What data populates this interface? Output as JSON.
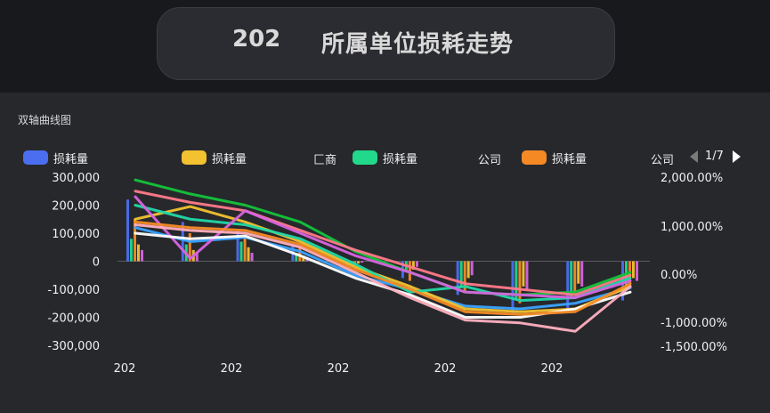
{
  "header": {
    "year": "202",
    "title": "所属单位损耗走势"
  },
  "panel": {
    "label": "双轴曲线图"
  },
  "legend": {
    "items": [
      {
        "label": "损耗量",
        "color": "#4b6ef0"
      },
      {
        "label": "损耗量",
        "color": "#f2c230"
      },
      {
        "label": "损耗量",
        "color": "#22d88a"
      },
      {
        "label": "损耗量",
        "color": "#f58a25"
      }
    ],
    "fragments": [
      "匚商",
      "公司",
      "公司"
    ],
    "page": "1/7"
  },
  "chart_data": {
    "type": "line",
    "y_left": {
      "ticks": [
        "300,000",
        "200,000",
        "100,000",
        "0",
        "-100,000",
        "-200,000",
        "-300,000"
      ],
      "range": [
        -300000,
        300000
      ]
    },
    "y_right": {
      "ticks": [
        "2,000.00%",
        "1,000.00%",
        "0.00%",
        "-1,000.00%",
        "-1,500.00%"
      ]
    },
    "x_labels": [
      "202",
      "202",
      "202",
      "202",
      "202"
    ],
    "series": [
      {
        "color": "#13c43a",
        "values": [
          290000,
          240000,
          200000,
          140000,
          35000,
          -40000,
          -110000,
          -120000,
          -110000,
          -40000
        ]
      },
      {
        "color": "#3aa3ff",
        "values": [
          120000,
          70000,
          85000,
          35000,
          -50000,
          -100000,
          -160000,
          -170000,
          -150000,
          -95000
        ]
      },
      {
        "color": "#ff7a8a",
        "values": [
          250000,
          210000,
          180000,
          110000,
          40000,
          -20000,
          -80000,
          -100000,
          -120000,
          -50000
        ]
      },
      {
        "color": "#f2c230",
        "values": [
          150000,
          195000,
          140000,
          70000,
          -20000,
          -90000,
          -170000,
          -180000,
          -170000,
          -90000
        ]
      },
      {
        "color": "#21d8a8",
        "values": [
          200000,
          150000,
          130000,
          80000,
          -10000,
          -110000,
          -90000,
          -140000,
          -130000,
          -60000
        ]
      },
      {
        "color": "#d864e0",
        "values": [
          230000,
          10000,
          180000,
          100000,
          20000,
          -40000,
          -110000,
          -120000,
          -130000,
          -70000
        ]
      },
      {
        "color": "#ffffff",
        "values": [
          100000,
          80000,
          90000,
          20000,
          -60000,
          -120000,
          -200000,
          -200000,
          -170000,
          -110000
        ]
      },
      {
        "color": "#ffb0c0",
        "values": [
          130000,
          110000,
          100000,
          50000,
          -40000,
          -130000,
          -210000,
          -220000,
          -250000,
          -90000
        ]
      },
      {
        "color": "#f58a25",
        "values": [
          140000,
          120000,
          110000,
          60000,
          -30000,
          -100000,
          -180000,
          -190000,
          -180000,
          -80000
        ]
      }
    ],
    "bars": [
      {
        "color": "#4b6ef0",
        "values": [
          220000,
          140000,
          110000,
          60000,
          -20000,
          -60000,
          -120000,
          -190000,
          -180000,
          -140000
        ]
      },
      {
        "color": "#22d88a",
        "values": [
          80000,
          60000,
          70000,
          30000,
          -10000,
          -40000,
          -90000,
          -140000,
          -130000,
          -100000
        ]
      },
      {
        "color": "#f58a25",
        "values": [
          150000,
          100000,
          90000,
          50000,
          -15000,
          -70000,
          -110000,
          -150000,
          -120000,
          -90000
        ]
      },
      {
        "color": "#f2c230",
        "values": [
          60000,
          40000,
          50000,
          20000,
          -8000,
          -30000,
          -60000,
          -90000,
          -80000,
          -60000
        ]
      },
      {
        "color": "#d864e0",
        "values": [
          40000,
          30000,
          30000,
          15000,
          -5000,
          -20000,
          -50000,
          -100000,
          -90000,
          -70000
        ]
      }
    ]
  }
}
